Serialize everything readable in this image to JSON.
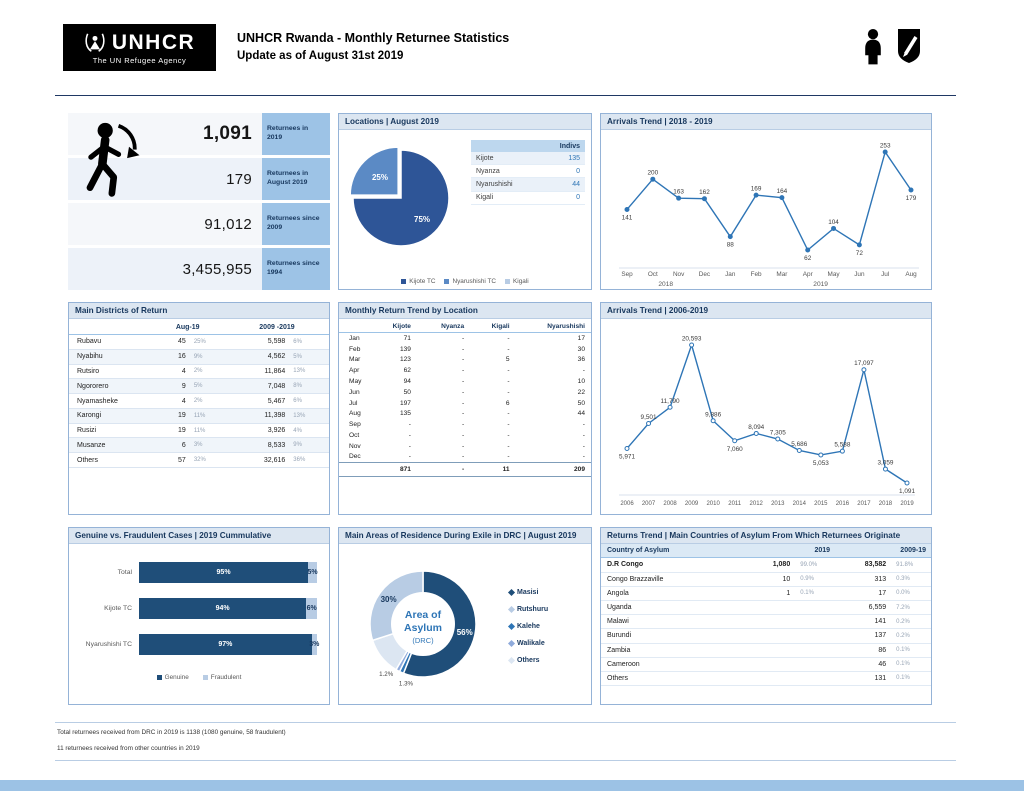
{
  "header": {
    "logo_text": "UNHCR",
    "logo_tagline": "The UN Refugee Agency",
    "title": "UNHCR Rwanda - Monthly Returnee Statistics",
    "subtitle": "Update as of August 31st 2019"
  },
  "stats": {
    "rows": [
      {
        "value": "179",
        "label": "Returnees in August 2019"
      },
      {
        "value": "1,091",
        "label": "Returnees in 2019"
      },
      {
        "value": "91,012",
        "label": "Returnees since 2009"
      },
      {
        "value": "3,455,955",
        "label": "Returnees since 1994"
      }
    ]
  },
  "panels": {
    "locations": {
      "title": "Locations | August 2019",
      "table": {
        "header": "Indivs",
        "rows": [
          [
            "Kijote",
            "135"
          ],
          [
            "Nyanza",
            "0"
          ],
          [
            "Nyarushishi",
            "44"
          ],
          [
            "Kigali",
            "0"
          ]
        ]
      },
      "legend": [
        {
          "label": "Kijote TC",
          "color": "#2e5597"
        },
        {
          "label": "Nyarushishi TC",
          "color": "#5b8ac5"
        },
        {
          "label": "Kigali",
          "color": "#b8cce4"
        }
      ]
    },
    "arrivals_recent": {
      "title": "Arrivals Trend | 2018 - 2019"
    },
    "districts": {
      "title": "Main Districts of Return",
      "col_aug": "Aug-19",
      "col_cum": "2009 -2019",
      "rows": [
        [
          "Rubavu",
          "45",
          "25%",
          "5,598",
          "6%"
        ],
        [
          "Nyabihu",
          "16",
          "9%",
          "4,562",
          "5%"
        ],
        [
          "Rutsiro",
          "4",
          "2%",
          "11,864",
          "13%"
        ],
        [
          "Ngororero",
          "9",
          "5%",
          "7,048",
          "8%"
        ],
        [
          "Nyamasheke",
          "4",
          "2%",
          "5,467",
          "6%"
        ],
        [
          "Karongi",
          "19",
          "11%",
          "11,398",
          "13%"
        ],
        [
          "Rusizi",
          "19",
          "11%",
          "3,926",
          "4%"
        ],
        [
          "Musanze",
          "6",
          "3%",
          "8,533",
          "9%"
        ],
        [
          "Others",
          "57",
          "32%",
          "32,616",
          "36%"
        ]
      ]
    },
    "monthly": {
      "title": "Monthly Return Trend by Location",
      "columns": [
        "Kijote",
        "Nyanza",
        "Kigali",
        "Nyarushishi"
      ],
      "rows": [
        [
          "Jan",
          "71",
          "-",
          "-",
          "17"
        ],
        [
          "Feb",
          "139",
          "-",
          "-",
          "30"
        ],
        [
          "Mar",
          "123",
          "-",
          "5",
          "36"
        ],
        [
          "Apr",
          "62",
          "-",
          "-",
          "-"
        ],
        [
          "May",
          "94",
          "-",
          "-",
          "10"
        ],
        [
          "Jun",
          "50",
          "-",
          "-",
          "22"
        ],
        [
          "Jul",
          "197",
          "-",
          "6",
          "50"
        ],
        [
          "Aug",
          "135",
          "-",
          "-",
          "44"
        ],
        [
          "Sep",
          "-",
          "-",
          "-",
          "-"
        ],
        [
          "Oct",
          "-",
          "-",
          "-",
          "-"
        ],
        [
          "Nov",
          "-",
          "-",
          "-",
          "-"
        ],
        [
          "Dec",
          "-",
          "-",
          "-",
          "-"
        ]
      ],
      "total": [
        "",
        "871",
        "-",
        "11",
        "209"
      ]
    },
    "arrivals_history": {
      "title": "Arrivals Trend | 2006-2019"
    },
    "genuine": {
      "title": "Genuine vs. Fraudulent Cases | 2019 Cummulative"
    },
    "areas": {
      "title": "Main Areas of Residence During Exile in DRC | August 2019",
      "legend": [
        {
          "label": "Masisi",
          "color": "#1f4e79"
        },
        {
          "label": "Rutshuru",
          "color": "#b8cce4"
        },
        {
          "label": "Kalehe",
          "color": "#2e75b6"
        },
        {
          "label": "Walikale",
          "color": "#8eaadb"
        },
        {
          "label": "Others",
          "color": "#dce6f2"
        }
      ]
    },
    "returns": {
      "title": "Returns Trend | Main Countries of Asylum From Which Returnees Originate",
      "col_country": "Country of Asylum",
      "col_2019": "2019",
      "col_cum": "2009-19",
      "rows": [
        [
          "D.R Congo",
          "1,080",
          "99.0%",
          "83,582",
          "91.8%"
        ],
        [
          "Congo Brazzaville",
          "10",
          "0.9%",
          "313",
          "0.3%"
        ],
        [
          "Angola",
          "1",
          "0.1%",
          "17",
          "0.0%"
        ],
        [
          "Uganda",
          "",
          "",
          "6,559",
          "7.2%"
        ],
        [
          "Malawi",
          "",
          "",
          "141",
          "0.2%"
        ],
        [
          "Burundi",
          "",
          "",
          "137",
          "0.2%"
        ],
        [
          "Zambia",
          "",
          "",
          "86",
          "0.1%"
        ],
        [
          "Cameroon",
          "",
          "",
          "46",
          "0.1%"
        ],
        [
          "Others",
          "",
          "",
          "131",
          "0.1%"
        ]
      ]
    }
  },
  "chart_data": [
    {
      "id": "locations-pie",
      "type": "pie",
      "title": "Locations | August 2019",
      "labels": [
        "Kijote TC",
        "Nyarushishi TC",
        "Kigali"
      ],
      "values": [
        75,
        25,
        0
      ],
      "slice_labels": [
        "75%",
        "25%",
        ""
      ],
      "colors": [
        "#2e5597",
        "#5b8ac5",
        "#b8cce4"
      ],
      "legend_position": "bottom"
    },
    {
      "id": "arrivals-2018-2019",
      "type": "line",
      "title": "Arrivals Trend | 2018 - 2019",
      "x": [
        "Sep",
        "Oct",
        "Nov",
        "Dec",
        "Jan",
        "Feb",
        "Mar",
        "Apr",
        "May",
        "Jun",
        "Jul",
        "Aug"
      ],
      "values": [
        141,
        200,
        163,
        162,
        88,
        169,
        164,
        62,
        104,
        72,
        253,
        179
      ],
      "year_labels": [
        {
          "text": "2018",
          "index": 1.5
        },
        {
          "text": "2019",
          "index": 7.5
        }
      ],
      "line_color": "#2e75b6",
      "grid": false
    },
    {
      "id": "arrivals-2006-2019",
      "type": "line",
      "title": "Arrivals Trend | 2006-2019",
      "x": [
        "2006",
        "2007",
        "2008",
        "2009",
        "2010",
        "2011",
        "2012",
        "2013",
        "2014",
        "2015",
        "2016",
        "2017",
        "2018",
        "2019"
      ],
      "values": [
        5971,
        9501,
        11790,
        20593,
        9886,
        7060,
        8094,
        7305,
        5686,
        5053,
        5588,
        17097,
        3059,
        1091
      ],
      "line_color": "#2e75b6",
      "grid": false
    },
    {
      "id": "genuine-fraudulent",
      "type": "bar",
      "orientation": "horizontal-stacked",
      "title": "Genuine vs. Fraudulent Cases | 2019 Cummulative",
      "categories": [
        "Total",
        "Kijote TC",
        "Nyarushishi TC"
      ],
      "series": [
        {
          "name": "Genuine",
          "values": [
            95,
            94,
            97
          ],
          "color": "#1f4e79"
        },
        {
          "name": "Fraudulent",
          "values": [
            5,
            6,
            3
          ],
          "color": "#b8cce4"
        }
      ],
      "xlim": [
        0,
        100
      ]
    },
    {
      "id": "asylum-donut",
      "type": "pie",
      "donut": true,
      "title": "Main Areas of Residence During Exile in DRC | August 2019",
      "labels": [
        "Masisi",
        "Kalehe",
        "Walikale",
        "Others",
        "Rutshuru"
      ],
      "values": [
        56,
        1.3,
        1.2,
        11.5,
        30
      ],
      "slice_labels": [
        "56%",
        "1.3%",
        "1.2%",
        "",
        "30%"
      ],
      "colors": [
        "#1f4e79",
        "#2e75b6",
        "#8eaadb",
        "#dce6f2",
        "#b8cce4"
      ],
      "center_text": [
        "Area of",
        "Asylum",
        "(DRC)"
      ]
    }
  ],
  "footnotes": [
    "Total returnees received from DRC in 2019 is 1138 (1080 genuine, 58 fraudulent)",
    "11 returnees received from other countries in 2019"
  ]
}
